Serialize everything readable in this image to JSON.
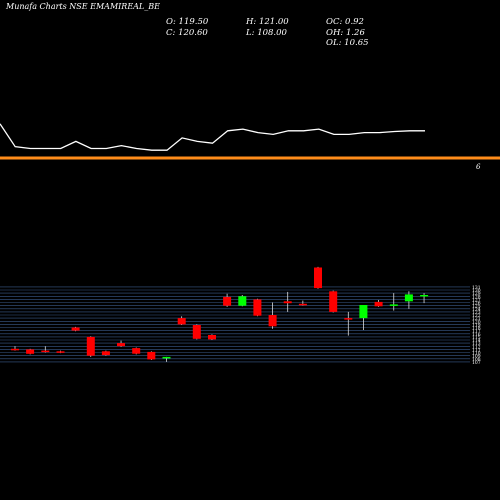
{
  "header": {
    "title": "Munafa Charts NSE EMAMIREAL_BE"
  },
  "ohlc_panel": {
    "open": "O: 119.50",
    "high": "H: 121.00",
    "oc": "OC: 0.92",
    "close": "C: 120.60",
    "low": "L: 108.00",
    "oh": "OH: 1.26",
    "ol": "OL: 10.65"
  },
  "colors": {
    "background": "#000000",
    "line": "#ffffff",
    "separator": "#ff8c1a",
    "up": "#00ff00",
    "down": "#ff0000",
    "grid": "#3a5a8a"
  },
  "chart_data": {
    "type": "candlestick",
    "panels": [
      {
        "name": "",
        "type": "line",
        "values": [
          8,
          1.5,
          1,
          1,
          1,
          3,
          1,
          1,
          1.8,
          1,
          0.5,
          0.5,
          4,
          3,
          2.5,
          6,
          6.5,
          5.5,
          5,
          6,
          6,
          6.5,
          5,
          5,
          5.5,
          5.5,
          5.8,
          6,
          6
        ]
      }
    ],
    "separator_label": "6",
    "price_axis_labels": [
      "131",
      "130",
      "129",
      "128",
      "127",
      "126",
      "125",
      "124",
      "123",
      "122",
      "121",
      "120",
      "119",
      "118",
      "117",
      "116",
      "115",
      "114",
      "113",
      "112",
      "111",
      "110",
      "109",
      "108",
      "107"
    ],
    "candles": [
      {
        "o": 111.2,
        "h": 112.0,
        "l": 110.6,
        "c": 110.8
      },
      {
        "o": 111.0,
        "h": 111.2,
        "l": 109.4,
        "c": 109.6
      },
      {
        "o": 110.6,
        "h": 112.0,
        "l": 110.0,
        "c": 110.2
      },
      {
        "o": 110.4,
        "h": 110.6,
        "l": 109.8,
        "c": 110.0
      },
      {
        "o": 118.0,
        "h": 118.2,
        "l": 116.8,
        "c": 117.0
      },
      {
        "o": 115.0,
        "h": 115.2,
        "l": 108.6,
        "c": 109.0
      },
      {
        "o": 110.4,
        "h": 110.6,
        "l": 109.0,
        "c": 109.2
      },
      {
        "o": 113.0,
        "h": 113.8,
        "l": 111.8,
        "c": 112.0
      },
      {
        "o": 111.4,
        "h": 111.6,
        "l": 109.4,
        "c": 109.6
      },
      {
        "o": 110.2,
        "h": 110.4,
        "l": 107.6,
        "c": 107.8
      },
      {
        "o": 108.2,
        "h": 108.6,
        "l": 107.0,
        "c": 108.6
      },
      {
        "o": 121.0,
        "h": 121.6,
        "l": 118.8,
        "c": 119.0
      },
      {
        "o": 118.8,
        "h": 119.0,
        "l": 114.2,
        "c": 114.4
      },
      {
        "o": 115.6,
        "h": 115.8,
        "l": 114.0,
        "c": 114.2
      },
      {
        "o": 127.8,
        "h": 128.8,
        "l": 124.6,
        "c": 125.0
      },
      {
        "o": 125.0,
        "h": 128.4,
        "l": 124.8,
        "c": 128.0
      },
      {
        "o": 127.0,
        "h": 127.2,
        "l": 121.6,
        "c": 121.8
      },
      {
        "o": 122.0,
        "h": 126.0,
        "l": 117.6,
        "c": 118.4
      },
      {
        "o": 126.4,
        "h": 129.4,
        "l": 123.0,
        "c": 125.8
      },
      {
        "o": 125.6,
        "h": 126.6,
        "l": 125.0,
        "c": 125.2
      },
      {
        "o": 137.2,
        "h": 137.4,
        "l": 130.4,
        "c": 130.6
      },
      {
        "o": 129.6,
        "h": 129.8,
        "l": 122.8,
        "c": 123.0
      },
      {
        "o": 121.0,
        "h": 123.0,
        "l": 115.4,
        "c": 120.6
      },
      {
        "o": 121.0,
        "h": 125.0,
        "l": 117.2,
        "c": 125.2
      },
      {
        "o": 126.2,
        "h": 126.8,
        "l": 124.6,
        "c": 124.8
      },
      {
        "o": 125.0,
        "h": 129.0,
        "l": 123.4,
        "c": 125.4
      },
      {
        "o": 126.4,
        "h": 129.6,
        "l": 124.0,
        "c": 128.6
      },
      {
        "o": 128.4,
        "h": 129.0,
        "l": 125.8,
        "c": 128.4
      }
    ],
    "grid": true
  }
}
